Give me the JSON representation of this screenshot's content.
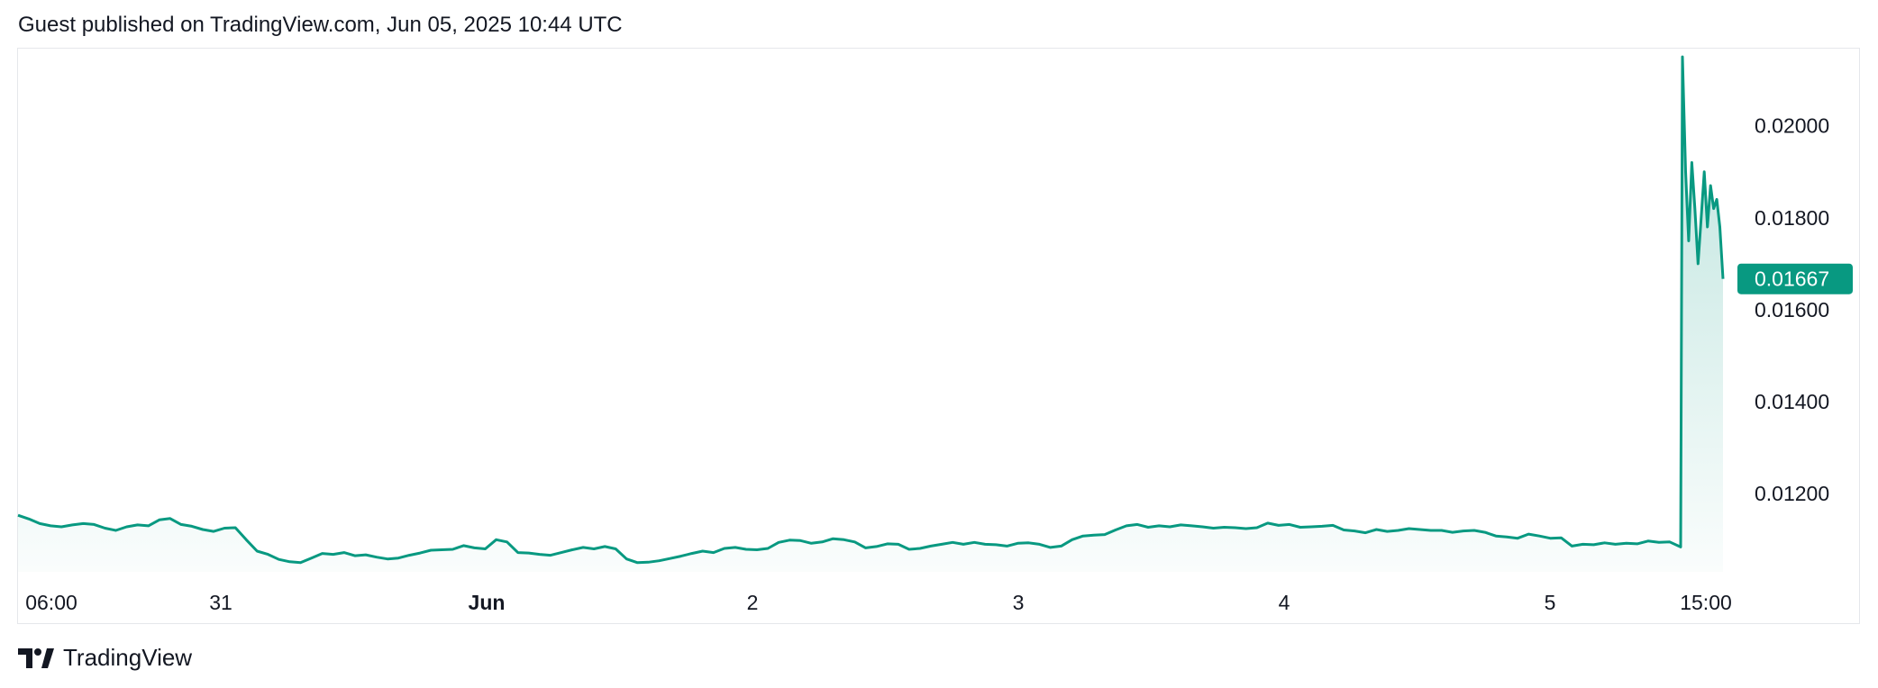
{
  "header": {
    "published_text": "Guest published on TradingView.com, Jun 05, 2025 10:44 UTC"
  },
  "footer": {
    "brand_label": "TradingView",
    "logo_icon": "tradingview-logo-icon"
  },
  "colors": {
    "line": "#089981",
    "area_top": "#089981",
    "price_tag_bg": "#089981"
  },
  "chart_data": {
    "type": "area",
    "title": "",
    "xlabel": "",
    "ylabel": "",
    "x_ticks": [
      {
        "label": "06:00",
        "bold": false
      },
      {
        "label": "31",
        "bold": false
      },
      {
        "label": "Jun",
        "bold": true
      },
      {
        "label": "2",
        "bold": false
      },
      {
        "label": "3",
        "bold": false
      },
      {
        "label": "4",
        "bold": false
      },
      {
        "label": "5",
        "bold": false
      },
      {
        "label": "15:00",
        "bold": false
      }
    ],
    "y_ticks": [
      "0.02000",
      "0.01800",
      "0.01600",
      "0.01400",
      "0.01200"
    ],
    "ylim": [
      0.0103,
      0.0216
    ],
    "grid": false,
    "last_price": "0.01667",
    "series": [
      {
        "values": [
          0.01153,
          0.01145,
          0.01135,
          0.0113,
          0.01128,
          0.01132,
          0.01135,
          0.01133,
          0.01125,
          0.0112,
          0.01128,
          0.01132,
          0.0113,
          0.01143,
          0.01146,
          0.01133,
          0.01129,
          0.01122,
          0.01118,
          0.01125,
          0.01126,
          0.011,
          0.01075,
          0.01068,
          0.01057,
          0.01052,
          0.0105,
          0.0106,
          0.0107,
          0.01068,
          0.01072,
          0.01065,
          0.01067,
          0.01062,
          0.01058,
          0.0106,
          0.01066,
          0.01071,
          0.01077,
          0.01078,
          0.01079,
          0.01087,
          0.01082,
          0.0108,
          0.011,
          0.01095,
          0.01072,
          0.01071,
          0.01068,
          0.01066,
          0.01072,
          0.01078,
          0.01083,
          0.0108,
          0.01085,
          0.0108,
          0.01058,
          0.0105,
          0.01051,
          0.01054,
          0.01059,
          0.01064,
          0.0107,
          0.01075,
          0.01072,
          0.01081,
          0.01083,
          0.01079,
          0.01078,
          0.01081,
          0.01094,
          0.01099,
          0.01098,
          0.01092,
          0.01095,
          0.01102,
          0.011,
          0.01095,
          0.01082,
          0.01085,
          0.01091,
          0.0109,
          0.01079,
          0.01081,
          0.01086,
          0.0109,
          0.01094,
          0.0109,
          0.01094,
          0.0109,
          0.01089,
          0.01086,
          0.01092,
          0.01093,
          0.0109,
          0.01083,
          0.01086,
          0.011,
          0.01108,
          0.0111,
          0.01111,
          0.01121,
          0.0113,
          0.01133,
          0.01127,
          0.0113,
          0.01128,
          0.01132,
          0.0113,
          0.01128,
          0.01125,
          0.01127,
          0.01126,
          0.01124,
          0.01126,
          0.01136,
          0.01131,
          0.01133,
          0.01127,
          0.01128,
          0.01129,
          0.01131,
          0.01121,
          0.01119,
          0.01115,
          0.01122,
          0.01118,
          0.0112,
          0.01124,
          0.01122,
          0.0112,
          0.0112,
          0.01116,
          0.01119,
          0.0112,
          0.01116,
          0.01108,
          0.01106,
          0.01103,
          0.01112,
          0.01108,
          0.01103,
          0.01104,
          0.01086,
          0.0109,
          0.01089,
          0.01093,
          0.0109,
          0.01092,
          0.01091,
          0.01097,
          0.01094,
          0.01095,
          0.01084,
          0.01667
        ]
      }
    ],
    "spike_values": [
      0.01082,
      0.0215,
      0.019,
      0.0175,
      0.0192,
      0.0182,
      0.017,
      0.018,
      0.019,
      0.0178,
      0.0187,
      0.0182,
      0.0184,
      0.0178,
      0.01667
    ]
  }
}
